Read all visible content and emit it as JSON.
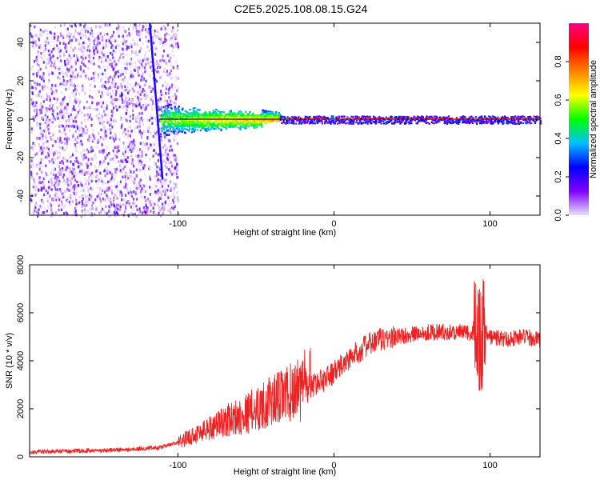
{
  "title": "C2E5.2025.108.08.15.G24",
  "colors": {
    "snr_line": "#ee2222",
    "trace_line": "#1a1a1a",
    "background": "#ffffff"
  },
  "chart_data": [
    {
      "type": "heatmap",
      "xlabel": "Height of straight line (km)",
      "ylabel": "Frequency (Hz)",
      "xlim": [
        -195,
        132
      ],
      "ylim": [
        -50,
        50
      ],
      "x_ticks": [
        -100,
        0,
        100
      ],
      "y_ticks": [
        -40,
        -20,
        0,
        20,
        40
      ],
      "grid": false,
      "colorbar": {
        "label": "Normalized spectral amplitude",
        "range": [
          0,
          1
        ],
        "ticks": [
          0.0,
          0.2,
          0.4,
          0.6,
          0.8
        ],
        "colormap": [
          "#e8e0f8",
          "#8000ff",
          "#0000ff",
          "#00c0ff",
          "#00ff00",
          "#ffff00",
          "#ff8000",
          "#ff0000",
          "#ff0080"
        ]
      },
      "dominant_frequency_trace": {
        "x_range": [
          -112,
          132
        ],
        "frequency_hz": 0
      },
      "features": {
        "noise_region_x": [
          -195,
          -100
        ],
        "diagonal_streak": {
          "from": [
            -118,
            50
          ],
          "to": [
            -110,
            -30
          ]
        },
        "spread_region_x": [
          -112,
          -35
        ],
        "stable_region_x": [
          -35,
          132
        ]
      }
    },
    {
      "type": "line",
      "xlabel": "Height of straight line (km)",
      "ylabel": "SNR (10 * v/v)",
      "xlim": [
        -195,
        132
      ],
      "ylim": [
        0,
        8000
      ],
      "x_ticks": [
        -100,
        0,
        100
      ],
      "y_ticks": [
        0,
        2000,
        4000,
        6000,
        8000
      ],
      "grid": false,
      "series": [
        {
          "x": [
            -195,
            -160,
            -130,
            -110,
            -100,
            -90,
            -80,
            -70,
            -60,
            -50,
            -40,
            -30,
            -20,
            -10,
            0,
            10,
            20,
            30,
            40,
            50,
            60,
            70,
            80,
            90,
            95,
            100,
            110,
            120,
            132
          ],
          "values": [
            200,
            250,
            300,
            400,
            600,
            900,
            1200,
            1500,
            1700,
            2000,
            2300,
            2600,
            2800,
            3100,
            3500,
            4100,
            4600,
            4900,
            5000,
            5100,
            5200,
            5200,
            5200,
            5100,
            5300,
            5000,
            4900,
            5000,
            4900
          ]
        }
      ]
    }
  ]
}
